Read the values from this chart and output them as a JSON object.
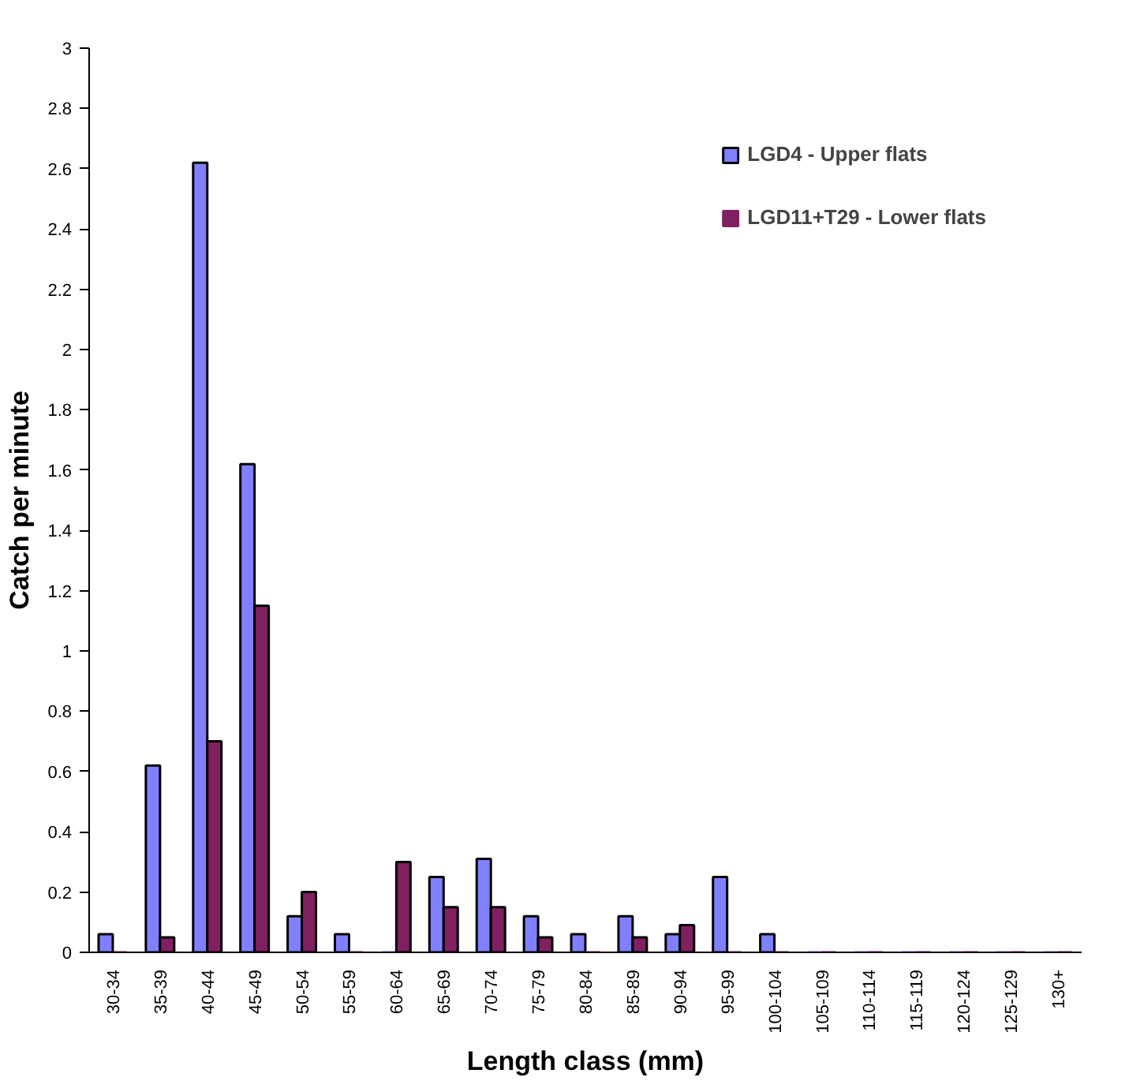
{
  "chart_data": {
    "type": "bar",
    "xlabel": "Length class (mm)",
    "ylabel": "Catch per minute",
    "categories": [
      "30-34",
      "35-39",
      "40-44",
      "45-49",
      "50-54",
      "55-59",
      "60-64",
      "65-69",
      "70-74",
      "75-79",
      "80-84",
      "85-89",
      "90-94",
      "95-99",
      "100-104",
      "105-109",
      "110-114",
      "115-119",
      "120-124",
      "125-129",
      "130+"
    ],
    "series": [
      {
        "name": "LGD4 - Upper flats",
        "color": "#8080ff",
        "values": [
          0.06,
          0.62,
          2.62,
          1.62,
          0.12,
          0.06,
          0,
          0.25,
          0.31,
          0.12,
          0.06,
          0.12,
          0.06,
          0.25,
          0.06,
          0,
          0,
          0,
          0,
          0,
          0
        ]
      },
      {
        "name": "LGD11+T29 - Lower flats",
        "color": "#802060",
        "values": [
          0,
          0.05,
          0.7,
          1.15,
          0.2,
          0,
          0.3,
          0.15,
          0.15,
          0.05,
          0,
          0.05,
          0.09,
          0,
          0,
          0,
          0,
          0,
          0,
          0,
          0
        ]
      }
    ],
    "ylim": [
      0,
      3
    ],
    "yticks": [
      0,
      0.2,
      0.4,
      0.6,
      0.8,
      1,
      1.2,
      1.4,
      1.6,
      1.8,
      2,
      2.2,
      2.4,
      2.6,
      2.8,
      3
    ],
    "grid": false,
    "legend": "top right"
  }
}
